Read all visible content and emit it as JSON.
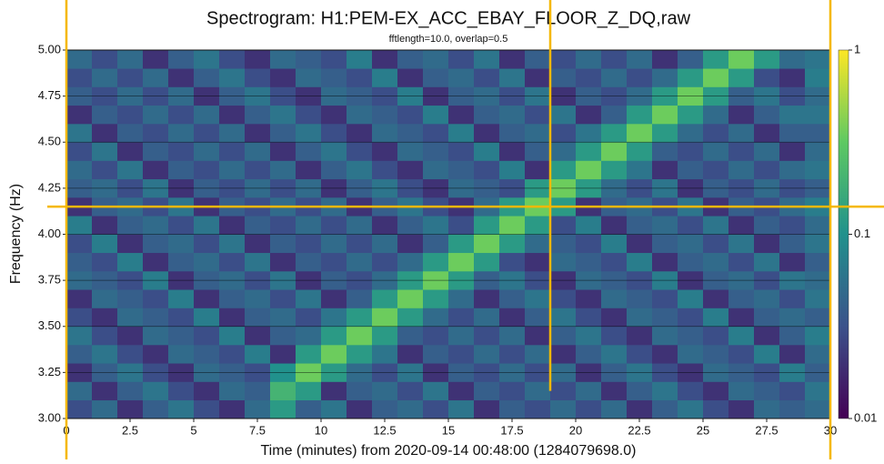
{
  "chart_data": {
    "type": "heatmap",
    "title": "Spectrogram: H1:PEM-EX_ACC_EBAY_FLOOR_Z_DQ,raw",
    "subtitle": "fftlength=10.0, overlap=0.5",
    "xlabel": "Time (minutes) from 2020-09-14 00:48:00 (1284079698.0)",
    "ylabel": "Frequency (Hz)",
    "xlim": [
      0,
      30
    ],
    "ylim": [
      3,
      5
    ],
    "xticks": [
      0,
      2.5,
      5,
      7.5,
      10,
      12.5,
      15,
      17.5,
      20,
      22.5,
      25,
      27.5,
      30
    ],
    "yticks": [
      {
        "value": 3,
        "label": "3.00"
      },
      {
        "value": 3.25,
        "label": "3.25"
      },
      {
        "value": 3.5,
        "label": "3.50"
      },
      {
        "value": 3.75,
        "label": "3.75"
      },
      {
        "value": 4,
        "label": "4.00"
      },
      {
        "value": 4.25,
        "label": "4.25"
      },
      {
        "value": 4.5,
        "label": "4.50"
      },
      {
        "value": 4.75,
        "label": "4.75"
      },
      {
        "value": 5,
        "label": "5.00"
      }
    ],
    "grid": true,
    "colorscale": "viridis",
    "color_log": true,
    "clim": [
      0.01,
      1
    ],
    "cticks": [
      0.01,
      0.1,
      1
    ],
    "xbins": [
      0,
      1,
      2,
      3,
      4,
      5,
      6,
      7,
      8,
      9,
      10,
      11,
      12,
      13,
      14,
      15,
      16,
      17,
      18,
      19,
      20,
      21,
      22,
      23,
      24,
      25,
      26,
      27,
      28,
      29,
      30
    ],
    "ybins": [
      3,
      3.1,
      3.2,
      3.3,
      3.4,
      3.5,
      3.6,
      3.7,
      3.8,
      3.9,
      4,
      4.1,
      4.2,
      4.3,
      4.4,
      4.5,
      4.6,
      4.7,
      4.8,
      4.9,
      5
    ],
    "z": [
      [
        0.03,
        0.05,
        0.02,
        0.04,
        0.06,
        0.03,
        0.02,
        0.05,
        0.04,
        0.03,
        0.07,
        0.02,
        0.04,
        0.05,
        0.03,
        0.06,
        0.02,
        0.04,
        0.03,
        0.05
      ],
      [
        0.05,
        0.02,
        0.04,
        0.06,
        0.03,
        0.02,
        0.05,
        0.04,
        0.03,
        0.07,
        0.02,
        0.04,
        0.05,
        0.03,
        0.06,
        0.02,
        0.04,
        0.03,
        0.05,
        0.03
      ],
      [
        0.02,
        0.04,
        0.06,
        0.03,
        0.02,
        0.05,
        0.04,
        0.03,
        0.07,
        0.02,
        0.04,
        0.05,
        0.03,
        0.06,
        0.02,
        0.04,
        0.03,
        0.05,
        0.03,
        0.05
      ],
      [
        0.04,
        0.06,
        0.03,
        0.02,
        0.05,
        0.04,
        0.03,
        0.07,
        0.02,
        0.04,
        0.05,
        0.03,
        0.06,
        0.02,
        0.04,
        0.03,
        0.05,
        0.03,
        0.05,
        0.02
      ],
      [
        0.06,
        0.03,
        0.02,
        0.05,
        0.04,
        0.03,
        0.07,
        0.02,
        0.04,
        0.05,
        0.03,
        0.06,
        0.02,
        0.04,
        0.03,
        0.05,
        0.03,
        0.05,
        0.02,
        0.04
      ],
      [
        0.03,
        0.02,
        0.05,
        0.04,
        0.03,
        0.07,
        0.02,
        0.04,
        0.05,
        0.03,
        0.06,
        0.02,
        0.04,
        0.03,
        0.05,
        0.03,
        0.05,
        0.02,
        0.04,
        0.06
      ],
      [
        0.02,
        0.05,
        0.04,
        0.03,
        0.07,
        0.02,
        0.04,
        0.05,
        0.03,
        0.06,
        0.02,
        0.04,
        0.03,
        0.05,
        0.03,
        0.05,
        0.02,
        0.04,
        0.06,
        0.03
      ],
      [
        0.05,
        0.04,
        0.03,
        0.07,
        0.02,
        0.04,
        0.05,
        0.03,
        0.06,
        0.02,
        0.04,
        0.03,
        0.05,
        0.03,
        0.05,
        0.02,
        0.04,
        0.06,
        0.03,
        0.02
      ],
      [
        0.12,
        0.2,
        0.1,
        0.02,
        0.04,
        0.05,
        0.03,
        0.06,
        0.02,
        0.04,
        0.03,
        0.05,
        0.03,
        0.05,
        0.02,
        0.04,
        0.06,
        0.03,
        0.02,
        0.05
      ],
      [
        0.04,
        0.12,
        0.35,
        0.12,
        0.05,
        0.03,
        0.06,
        0.02,
        0.04,
        0.03,
        0.05,
        0.03,
        0.05,
        0.02,
        0.04,
        0.06,
        0.03,
        0.02,
        0.05,
        0.04
      ],
      [
        0.06,
        0.02,
        0.12,
        0.35,
        0.12,
        0.06,
        0.02,
        0.04,
        0.03,
        0.05,
        0.03,
        0.05,
        0.02,
        0.04,
        0.06,
        0.03,
        0.02,
        0.05,
        0.04,
        0.03
      ],
      [
        0.02,
        0.04,
        0.05,
        0.12,
        0.35,
        0.12,
        0.04,
        0.03,
        0.05,
        0.03,
        0.05,
        0.02,
        0.04,
        0.06,
        0.03,
        0.02,
        0.05,
        0.04,
        0.03,
        0.07
      ],
      [
        0.04,
        0.05,
        0.03,
        0.06,
        0.12,
        0.35,
        0.12,
        0.05,
        0.03,
        0.05,
        0.02,
        0.04,
        0.06,
        0.03,
        0.02,
        0.05,
        0.04,
        0.03,
        0.07,
        0.02
      ],
      [
        0.05,
        0.03,
        0.06,
        0.02,
        0.04,
        0.12,
        0.35,
        0.12,
        0.05,
        0.02,
        0.04,
        0.06,
        0.03,
        0.02,
        0.05,
        0.04,
        0.03,
        0.07,
        0.02,
        0.04
      ],
      [
        0.03,
        0.06,
        0.02,
        0.04,
        0.03,
        0.05,
        0.12,
        0.35,
        0.12,
        0.04,
        0.06,
        0.03,
        0.02,
        0.05,
        0.04,
        0.03,
        0.07,
        0.02,
        0.04,
        0.05
      ],
      [
        0.06,
        0.02,
        0.04,
        0.03,
        0.05,
        0.03,
        0.05,
        0.12,
        0.35,
        0.12,
        0.03,
        0.02,
        0.05,
        0.04,
        0.03,
        0.07,
        0.02,
        0.04,
        0.05,
        0.03
      ],
      [
        0.02,
        0.04,
        0.03,
        0.05,
        0.03,
        0.05,
        0.02,
        0.04,
        0.12,
        0.35,
        0.12,
        0.05,
        0.04,
        0.03,
        0.07,
        0.02,
        0.04,
        0.05,
        0.03,
        0.06
      ],
      [
        0.04,
        0.03,
        0.05,
        0.03,
        0.05,
        0.02,
        0.04,
        0.06,
        0.03,
        0.12,
        0.35,
        0.12,
        0.03,
        0.07,
        0.02,
        0.04,
        0.05,
        0.03,
        0.06,
        0.02
      ],
      [
        0.03,
        0.05,
        0.03,
        0.05,
        0.02,
        0.04,
        0.06,
        0.03,
        0.02,
        0.05,
        0.12,
        0.35,
        0.12,
        0.02,
        0.04,
        0.05,
        0.03,
        0.06,
        0.02,
        0.04
      ],
      [
        0.05,
        0.03,
        0.05,
        0.02,
        0.04,
        0.06,
        0.03,
        0.02,
        0.05,
        0.04,
        0.03,
        0.12,
        0.35,
        0.12,
        0.05,
        0.03,
        0.06,
        0.02,
        0.04,
        0.03
      ],
      [
        0.03,
        0.05,
        0.02,
        0.04,
        0.06,
        0.03,
        0.02,
        0.05,
        0.04,
        0.03,
        0.07,
        0.02,
        0.12,
        0.35,
        0.12,
        0.06,
        0.02,
        0.04,
        0.03,
        0.05
      ],
      [
        0.05,
        0.02,
        0.04,
        0.06,
        0.03,
        0.02,
        0.05,
        0.04,
        0.03,
        0.07,
        0.02,
        0.04,
        0.05,
        0.12,
        0.35,
        0.12,
        0.04,
        0.03,
        0.05,
        0.03
      ],
      [
        0.02,
        0.04,
        0.06,
        0.03,
        0.02,
        0.05,
        0.04,
        0.03,
        0.07,
        0.02,
        0.04,
        0.05,
        0.03,
        0.06,
        0.12,
        0.35,
        0.12,
        0.05,
        0.03,
        0.05
      ],
      [
        0.04,
        0.06,
        0.03,
        0.02,
        0.05,
        0.04,
        0.03,
        0.07,
        0.02,
        0.04,
        0.05,
        0.03,
        0.06,
        0.02,
        0.04,
        0.12,
        0.35,
        0.12,
        0.05,
        0.02
      ],
      [
        0.06,
        0.03,
        0.02,
        0.05,
        0.04,
        0.03,
        0.07,
        0.02,
        0.04,
        0.05,
        0.03,
        0.06,
        0.02,
        0.04,
        0.03,
        0.05,
        0.12,
        0.35,
        0.12,
        0.04
      ],
      [
        0.03,
        0.02,
        0.05,
        0.04,
        0.03,
        0.07,
        0.02,
        0.04,
        0.05,
        0.03,
        0.06,
        0.02,
        0.04,
        0.03,
        0.05,
        0.03,
        0.05,
        0.12,
        0.35,
        0.12
      ],
      [
        0.02,
        0.05,
        0.04,
        0.03,
        0.07,
        0.02,
        0.04,
        0.05,
        0.03,
        0.06,
        0.02,
        0.04,
        0.03,
        0.05,
        0.03,
        0.05,
        0.02,
        0.04,
        0.12,
        0.35
      ],
      [
        0.05,
        0.04,
        0.03,
        0.07,
        0.02,
        0.04,
        0.05,
        0.03,
        0.06,
        0.02,
        0.04,
        0.03,
        0.05,
        0.03,
        0.05,
        0.02,
        0.04,
        0.06,
        0.03,
        0.12
      ],
      [
        0.04,
        0.03,
        0.07,
        0.02,
        0.04,
        0.05,
        0.03,
        0.06,
        0.02,
        0.04,
        0.03,
        0.05,
        0.03,
        0.05,
        0.02,
        0.04,
        0.06,
        0.03,
        0.02,
        0.05
      ],
      [
        0.05,
        0.06,
        0.04,
        0.05,
        0.07,
        0.04,
        0.06,
        0.05,
        0.04,
        0.06,
        0.05,
        0.07,
        0.04,
        0.06,
        0.05,
        0.04,
        0.06,
        0.05,
        0.07,
        0.06
      ]
    ],
    "annotations": {
      "vlines": [
        0,
        19,
        30
      ],
      "hline": 4.15,
      "color": "#f5b800"
    }
  }
}
